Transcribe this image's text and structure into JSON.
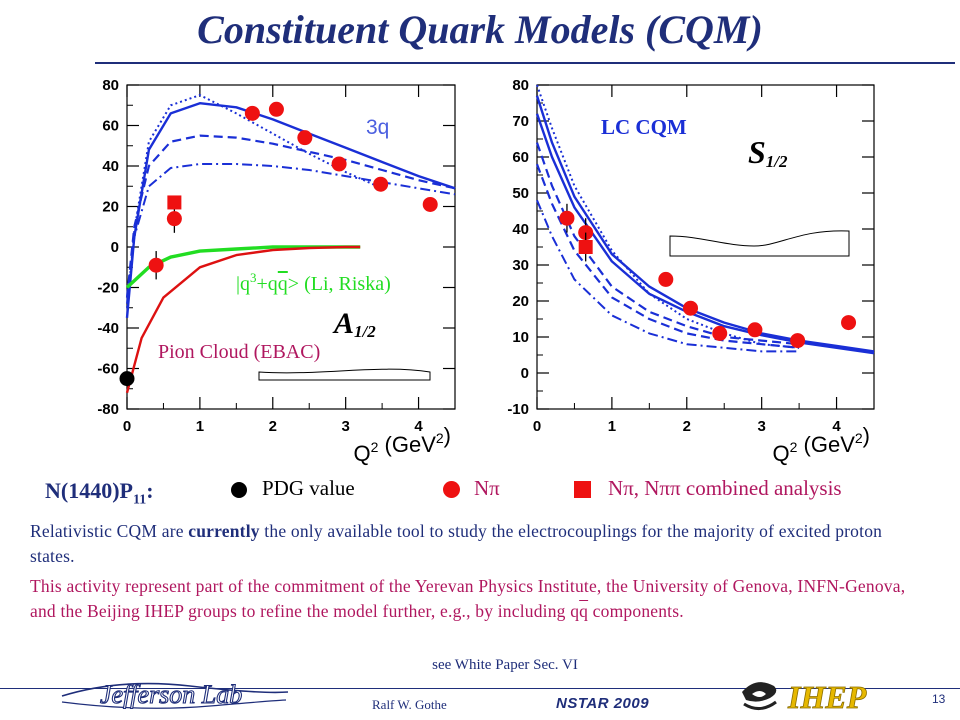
{
  "slide": {
    "title": "Constituent Quark Models (CQM)",
    "state_label": "N(1440)P",
    "state_sub": "11",
    "state_colon": ":",
    "legend": {
      "pdg": "PDG value",
      "npi": "Nπ",
      "combined": "Nπ, Nππ combined analysis"
    },
    "paragraph1": {
      "before": "Relativistic CQM are ",
      "bold": "currently",
      "after": " the only available tool to study the electrocouplings for the majority of excited proton states."
    },
    "paragraph2": {
      "main": "This activity represent part of the commitment of the Yerevan Physics Institute, the University of Genova, INFN-Genova, and the Beijing IHEP groups to refine the model further, e.g., by including q",
      "qbar": "q",
      "end": " components."
    },
    "see_note": "see White Paper Sec. VI",
    "footer": {
      "author": "Ralf W. Gothe",
      "conference": "NSTAR 2009",
      "slide_number": "13",
      "lab_logo_text": "Jefferson Lab",
      "ihep_text": "IHEP"
    }
  },
  "colors": {
    "title": "#1f2e7a",
    "model_curve": "#1a2fd6",
    "data_point": "#ee1111",
    "pion_cloud": "#dd1111",
    "li_riska": "#22dd22",
    "annotation_blue": "#4b5fe0",
    "annotation_maroon": "#b0175f"
  },
  "chart_data": [
    {
      "type": "scatter",
      "panel": "left",
      "ylabel_text": "A",
      "ylabel_sub": "1/2",
      "xlabel_main": "Q",
      "xlabel_sup": "2",
      "xlabel_unit": " (GeV",
      "xlabel_unit_sup": "2",
      "xlabel_close": ")",
      "xlim": [
        0,
        4.5
      ],
      "ylim": [
        -80,
        80
      ],
      "xticks": [
        0,
        1,
        2,
        3,
        4
      ],
      "yticks": [
        -80,
        -60,
        -40,
        -20,
        0,
        20,
        40,
        60,
        80
      ],
      "annotations": {
        "model": "3q",
        "li_riska_prefix": "|q",
        "li_riska_sup": "3",
        "li_riska_mid": "+q",
        "li_riska_qbar": "q",
        "li_riska_suffix": "> (Li, Riska)",
        "pion_cloud": "Pion Cloud (EBAC)"
      },
      "series": [
        {
          "name": "Nπ",
          "marker": "circle",
          "x": [
            0.4,
            0.65,
            1.72,
            2.05,
            2.44,
            2.91,
            3.48,
            4.16
          ],
          "y": [
            -9,
            14,
            66,
            68,
            54,
            41,
            31,
            21
          ],
          "yerr": [
            7,
            7,
            3,
            3,
            3,
            3,
            3,
            3
          ]
        },
        {
          "name": "Nπ, Nππ combined analysis",
          "marker": "square",
          "x": [
            0.65
          ],
          "y": [
            22
          ],
          "yerr": [
            3
          ]
        },
        {
          "name": "PDG value",
          "marker": "circle",
          "x": [
            0
          ],
          "y": [
            -65
          ],
          "yerr": [
            0
          ]
        }
      ],
      "model_curves": [
        {
          "style": "solid",
          "x": [
            0,
            0.1,
            0.3,
            0.6,
            1.0,
            1.5,
            2.0,
            2.5,
            3.0,
            3.5,
            4.0,
            4.5
          ],
          "y": [
            -35,
            5,
            48,
            66,
            71,
            69,
            63,
            56,
            49,
            42,
            35,
            29
          ]
        },
        {
          "style": "dotted",
          "x": [
            0,
            0.1,
            0.3,
            0.6,
            1.0,
            1.5,
            2.0,
            2.5,
            3.0,
            3.5
          ],
          "y": [
            -30,
            8,
            52,
            70,
            75,
            66,
            56,
            46,
            37,
            29
          ]
        },
        {
          "style": "dashed",
          "x": [
            0,
            0.1,
            0.3,
            0.6,
            1.0,
            1.5,
            2.0,
            2.5,
            3.0,
            3.5,
            4.0,
            4.5
          ],
          "y": [
            -25,
            10,
            40,
            52,
            55,
            54,
            51,
            47,
            43,
            38,
            33,
            29
          ]
        },
        {
          "style": "dashdot",
          "x": [
            0,
            0.1,
            0.3,
            0.6,
            1.0,
            1.5,
            2.0,
            2.5,
            3.0,
            3.5,
            4.0,
            4.5
          ],
          "y": [
            -28,
            5,
            30,
            39,
            41,
            41,
            40,
            38,
            35,
            32,
            29,
            26
          ]
        },
        {
          "style": "li_riska",
          "x": [
            0,
            0.3,
            0.6,
            1.0,
            1.5,
            2.0,
            2.5,
            3.0,
            3.2
          ],
          "y": [
            -20,
            -10,
            -5,
            -2,
            -1,
            0,
            0,
            0,
            0
          ]
        },
        {
          "style": "pion_cloud",
          "x": [
            0,
            0.2,
            0.5,
            1.0,
            1.5,
            2.0,
            2.5,
            3.0,
            3.2
          ],
          "y": [
            -72,
            -45,
            -25,
            -10,
            -4,
            -1.5,
            -0.5,
            0,
            0
          ]
        }
      ]
    },
    {
      "type": "scatter",
      "panel": "right",
      "ylabel_text": "S",
      "ylabel_sub": "1/2",
      "xlabel_main": "Q",
      "xlabel_sup": "2",
      "xlabel_unit": " (GeV",
      "xlabel_unit_sup": "2",
      "xlabel_close": ")",
      "xlim": [
        0,
        4.5
      ],
      "ylim": [
        -10,
        80
      ],
      "xticks": [
        0,
        1,
        2,
        3,
        4
      ],
      "yticks": [
        -10,
        0,
        10,
        20,
        30,
        40,
        50,
        60,
        70,
        80
      ],
      "annotations": {
        "model": "LC CQM"
      },
      "series": [
        {
          "name": "Nπ",
          "marker": "circle",
          "x": [
            0.4,
            0.65,
            1.72,
            2.05,
            2.44,
            2.91,
            3.48,
            4.16
          ],
          "y": [
            43,
            39,
            26,
            18,
            11,
            12,
            9,
            14
          ],
          "yerr": [
            4,
            4,
            2,
            2,
            2,
            2,
            2,
            2
          ]
        },
        {
          "name": "Nπ, Nππ combined analysis",
          "marker": "square",
          "x": [
            0.65
          ],
          "y": [
            35
          ],
          "yerr": [
            4
          ]
        }
      ],
      "model_curves": [
        {
          "style": "solid",
          "x": [
            0,
            0.2,
            0.5,
            1.0,
            1.5,
            2.0,
            2.5,
            3.0,
            3.5,
            4.0,
            4.5
          ],
          "y": [
            77,
            64,
            49,
            33,
            24,
            18,
            14,
            11,
            9,
            7.5,
            6
          ]
        },
        {
          "style": "solid",
          "x": [
            0,
            0.2,
            0.5,
            1.0,
            1.5,
            2.0,
            2.5,
            3.0,
            3.5,
            4.0,
            4.5
          ],
          "y": [
            72,
            60,
            46,
            31,
            22,
            17,
            13,
            10.5,
            8.5,
            7,
            5.5
          ]
        },
        {
          "style": "dotted",
          "x": [
            0,
            0.2,
            0.5,
            1.0,
            1.5,
            2.0,
            2.5,
            3.0,
            3.5
          ],
          "y": [
            80,
            68,
            52,
            34,
            22,
            15,
            11,
            8,
            7
          ]
        },
        {
          "style": "dashed",
          "x": [
            0,
            0.2,
            0.5,
            1.0,
            1.5,
            2.0,
            2.5,
            3.0,
            3.5
          ],
          "y": [
            64,
            52,
            38,
            24,
            17,
            13,
            10,
            9,
            8
          ]
        },
        {
          "style": "dashed",
          "x": [
            0,
            0.2,
            0.5,
            1.0,
            1.5,
            2.0,
            2.5,
            3.0,
            3.5
          ],
          "y": [
            58,
            47,
            34,
            21,
            15,
            11,
            9,
            8,
            7
          ]
        },
        {
          "style": "dashdot",
          "x": [
            0,
            0.2,
            0.5,
            1.0,
            1.5,
            2.0,
            2.5,
            3.0,
            3.5
          ],
          "y": [
            48,
            38,
            26,
            16,
            11,
            8,
            7,
            6,
            6
          ]
        }
      ]
    }
  ]
}
